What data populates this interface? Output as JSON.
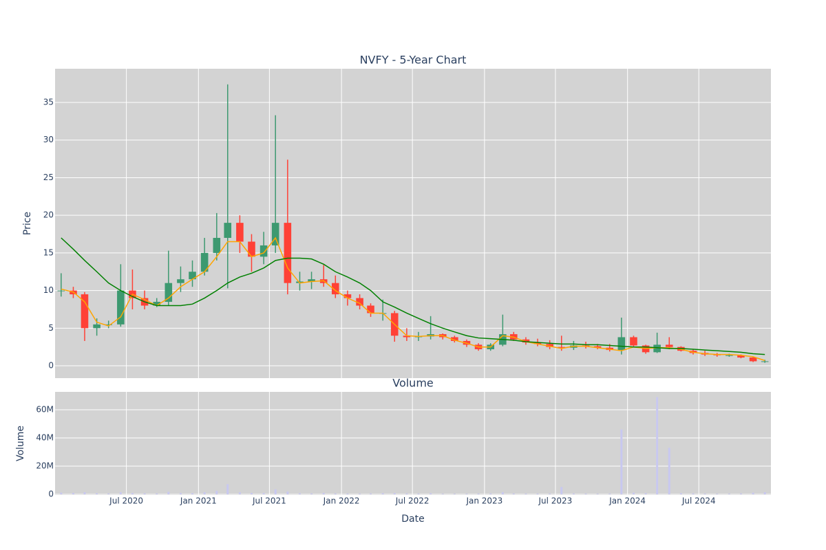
{
  "chart_data": [
    {
      "type": "candlestick",
      "title": "NVFY - 5-Year Chart",
      "y_label": "Price",
      "x": [
        "2020-01",
        "2020-02",
        "2020-03",
        "2020-04",
        "2020-05",
        "2020-06",
        "2020-07",
        "2020-08",
        "2020-09",
        "2020-10",
        "2020-11",
        "2020-12",
        "2021-01",
        "2021-02",
        "2021-03",
        "2021-04",
        "2021-05",
        "2021-06",
        "2021-07",
        "2021-08",
        "2021-09",
        "2021-10",
        "2021-11",
        "2021-12",
        "2022-01",
        "2022-02",
        "2022-03",
        "2022-04",
        "2022-05",
        "2022-06",
        "2022-07",
        "2022-08",
        "2022-09",
        "2022-10",
        "2022-11",
        "2022-12",
        "2023-01",
        "2023-02",
        "2023-03",
        "2023-04",
        "2023-05",
        "2023-06",
        "2023-07",
        "2023-08",
        "2023-09",
        "2023-10",
        "2023-11",
        "2023-12",
        "2024-01",
        "2024-02",
        "2024-03",
        "2024-04",
        "2024-05",
        "2024-06",
        "2024-07",
        "2024-08",
        "2024-09",
        "2024-10",
        "2024-11",
        "2024-12"
      ],
      "open": [
        10,
        10,
        9.5,
        5,
        5.5,
        5.5,
        10,
        9,
        8,
        8.5,
        11,
        11.5,
        12.5,
        15,
        17,
        19,
        16.5,
        14.5,
        16,
        19,
        11,
        11.2,
        11.5,
        11,
        9.5,
        9,
        8,
        7,
        7,
        4,
        3.8,
        3.9,
        4.2,
        3.8,
        3.3,
        2.8,
        2.2,
        2.8,
        4.2,
        3.5,
        3.1,
        2.9,
        2.5,
        2.4,
        2.7,
        2.6,
        2.4,
        2.1,
        3.8,
        2.7,
        1.8,
        2.8,
        2.5,
        2,
        1.7,
        1.5,
        1.4,
        1.4,
        1.1,
        0.6
      ],
      "high": [
        12.3,
        10.5,
        9.8,
        6.3,
        6,
        13.5,
        12.8,
        10,
        9,
        15.3,
        13.2,
        14,
        17,
        20.3,
        37.4,
        20,
        17.5,
        17.8,
        33.3,
        27.4,
        12.5,
        12.5,
        13.4,
        12,
        10,
        9.5,
        8.3,
        8.8,
        7.3,
        5,
        4.5,
        6.6,
        4.3,
        4,
        3.5,
        3,
        3,
        6.8,
        4.5,
        3.8,
        3.6,
        3.4,
        4,
        3.3,
        3.2,
        2.9,
        2.9,
        6.4,
        4,
        2.8,
        4.4,
        3.8,
        2.6,
        2.2,
        2,
        1.7,
        1.6,
        1.5,
        1.2,
        0.8
      ],
      "low": [
        9.2,
        9,
        3.3,
        4,
        5,
        5.2,
        7.5,
        7.5,
        7.8,
        8,
        9.8,
        10.5,
        12,
        14,
        10.3,
        15,
        12.5,
        13.5,
        15,
        9.5,
        10,
        10.2,
        10.5,
        9,
        8,
        7.5,
        6.5,
        6,
        3.2,
        3.3,
        3.3,
        3.5,
        3.5,
        3.1,
        2.5,
        2,
        2,
        2.6,
        3.3,
        2.8,
        2.6,
        2.2,
        2,
        2.1,
        2.3,
        2.2,
        1.9,
        1.5,
        2.5,
        1.6,
        1.7,
        2.2,
        1.9,
        1.5,
        1.3,
        1.2,
        1.2,
        1,
        0.5,
        0.4
      ],
      "close": [
        10,
        9.5,
        5,
        5.5,
        5.5,
        10,
        9,
        8,
        8.5,
        11,
        11.5,
        12.5,
        15,
        17,
        19,
        16.5,
        14.5,
        16,
        19,
        11,
        11.2,
        11.5,
        11,
        9.5,
        9,
        8,
        7,
        7,
        4,
        3.8,
        3.9,
        4.2,
        3.8,
        3.3,
        2.8,
        2.2,
        2.8,
        4.2,
        3.5,
        3.1,
        2.9,
        2.5,
        2.4,
        2.7,
        2.6,
        2.4,
        2.1,
        3.8,
        2.7,
        1.8,
        2.8,
        2.5,
        2,
        1.7,
        1.5,
        1.4,
        1.4,
        1.1,
        0.6,
        0.6
      ],
      "increasing_color": "#3d9970",
      "decreasing_color": "#ff4136",
      "lines": [
        {
          "color": "#ffa500",
          "values": [
            10.2,
            9.8,
            8.5,
            5.8,
            5.3,
            6.5,
            9.5,
            8.8,
            8,
            9,
            10.5,
            11.5,
            12.5,
            14.5,
            16.5,
            16.5,
            14.5,
            15,
            17,
            13,
            11,
            11.2,
            11.3,
            10,
            9,
            8.3,
            7,
            7,
            5.5,
            4,
            3.9,
            4,
            4,
            3.4,
            3,
            2.5,
            2.5,
            4,
            3.8,
            3.2,
            2.9,
            2.6,
            2.3,
            2.6,
            2.6,
            2.4,
            2.2,
            2,
            2.5,
            2.3,
            2.4,
            2.4,
            2.2,
            1.8,
            1.6,
            1.5,
            1.5,
            1.4,
            1.2,
            0.7
          ]
        },
        {
          "color": "#008000",
          "values": [
            17,
            15.5,
            14,
            12.5,
            11,
            10,
            9.2,
            8.5,
            8,
            8,
            8,
            8.2,
            9,
            10,
            11,
            11.8,
            12.3,
            13,
            14,
            14.3,
            14.3,
            14.2,
            13.5,
            12.5,
            11.8,
            11,
            10,
            8.5,
            7.8,
            7,
            6.3,
            5.6,
            5,
            4.5,
            4,
            3.7,
            3.6,
            3.5,
            3.4,
            3.2,
            3.1,
            3,
            2.9,
            2.9,
            2.8,
            2.8,
            2.7,
            2.6,
            2.5,
            2.5,
            2.4,
            2.3,
            2.3,
            2.2,
            2.1,
            2,
            1.9,
            1.8,
            1.6,
            1.5
          ]
        }
      ],
      "xlim": [
        "2020-01",
        "2025-01"
      ],
      "ylim": [
        -1.64,
        39.48
      ],
      "yticks": [
        0,
        5,
        10,
        15,
        20,
        25,
        30,
        35
      ],
      "grid": true
    },
    {
      "type": "bar",
      "title": "Volume",
      "y_label": "Volume",
      "x_label": "Date",
      "x": [
        "2020-01",
        "2020-02",
        "2020-03",
        "2020-04",
        "2020-05",
        "2020-06",
        "2020-07",
        "2020-08",
        "2020-09",
        "2020-10",
        "2020-11",
        "2020-12",
        "2021-01",
        "2021-02",
        "2021-03",
        "2021-04",
        "2021-05",
        "2021-06",
        "2021-07",
        "2021-08",
        "2021-09",
        "2021-10",
        "2021-11",
        "2021-12",
        "2022-01",
        "2022-02",
        "2022-03",
        "2022-04",
        "2022-05",
        "2022-06",
        "2022-07",
        "2022-08",
        "2022-09",
        "2022-10",
        "2022-11",
        "2022-12",
        "2023-01",
        "2023-02",
        "2023-03",
        "2023-04",
        "2023-05",
        "2023-06",
        "2023-07",
        "2023-08",
        "2023-09",
        "2023-10",
        "2023-11",
        "2023-12",
        "2024-01",
        "2024-02",
        "2024-03",
        "2024-04",
        "2024-05",
        "2024-06",
        "2024-07",
        "2024-08",
        "2024-09",
        "2024-10",
        "2024-11",
        "2024-12"
      ],
      "values": [
        1200000,
        1000000,
        1500000,
        800000,
        600000,
        1500000,
        900000,
        700000,
        600000,
        1800000,
        900000,
        800000,
        1500000,
        2500000,
        7200000,
        1500000,
        1000000,
        900000,
        3500000,
        2000000,
        800000,
        600000,
        1000000,
        600000,
        500000,
        500000,
        600000,
        800000,
        900000,
        600000,
        500000,
        800000,
        400000,
        400000,
        400000,
        500000,
        600000,
        1500000,
        600000,
        500000,
        500000,
        500000,
        5200000,
        600000,
        500000,
        400000,
        500000,
        46000000,
        1200000,
        800000,
        69000000,
        33000000,
        800000,
        600000,
        500000,
        400000,
        500000,
        600000,
        1200000,
        1500000
      ],
      "color": "#c8c8f0",
      "xlim": [
        "2020-01",
        "2025-01"
      ],
      "ylim": [
        -490000,
        72700000
      ],
      "yticks": [
        0,
        {
          "value": 20000000,
          "label": "20M"
        },
        {
          "value": 40000000,
          "label": "40M"
        },
        {
          "value": 60000000,
          "label": "60M"
        }
      ],
      "xticks": [
        {
          "value": "2020-07",
          "label": "Jul 2020"
        },
        {
          "value": "2021-01",
          "label": "Jan 2021"
        },
        {
          "value": "2021-07",
          "label": "Jul 2021"
        },
        {
          "value": "2022-01",
          "label": "Jan 2022"
        },
        {
          "value": "2022-07",
          "label": "Jul 2022"
        },
        {
          "value": "2023-01",
          "label": "Jan 2023"
        },
        {
          "value": "2023-07",
          "label": "Jul 2023"
        },
        {
          "value": "2024-01",
          "label": "Jan 2024"
        },
        {
          "value": "2024-07",
          "label": "Jul 2024"
        }
      ],
      "grid": true
    }
  ]
}
